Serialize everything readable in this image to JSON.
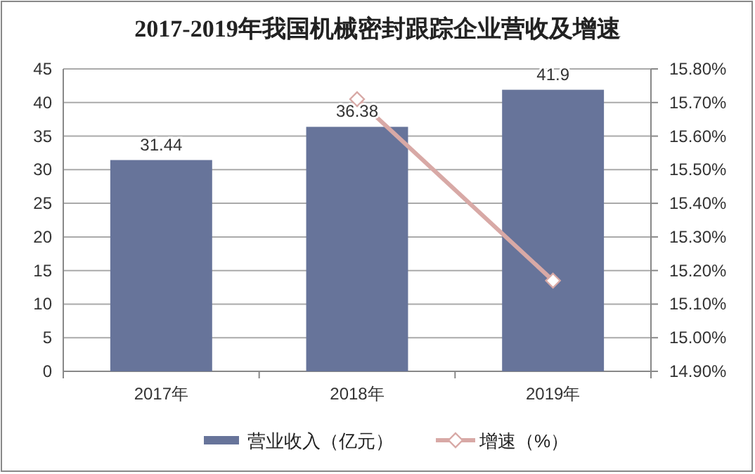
{
  "chart_data": {
    "type": "bar",
    "title": "2017-2019年我国机械密封跟踪企业营收及增速",
    "categories": [
      "2017年",
      "2018年",
      "2019年"
    ],
    "series": [
      {
        "name": "营业收入（亿元）",
        "color": "#67749a",
        "values": [
          31.44,
          36.38,
          41.9
        ],
        "value_labels": [
          "31.44",
          "36.38",
          "41.9"
        ]
      },
      {
        "name": "增速（%）",
        "type": "line",
        "axis": "y2",
        "color": "#d8a9a6",
        "marker": "diamond",
        "values": [
          null,
          15.71,
          15.17
        ]
      }
    ],
    "ylim": [
      0,
      45
    ],
    "yticks": [
      0,
      5,
      10,
      15,
      20,
      25,
      30,
      35,
      40,
      45
    ],
    "y2lim": [
      14.9,
      15.8
    ],
    "y2ticks": [
      {
        "value": 14.9,
        "label": "14.90%"
      },
      {
        "value": 15.0,
        "label": "15.00%"
      },
      {
        "value": 15.1,
        "label": "15.10%"
      },
      {
        "value": 15.2,
        "label": "15.20%"
      },
      {
        "value": 15.3,
        "label": "15.30%"
      },
      {
        "value": 15.4,
        "label": "15.40%"
      },
      {
        "value": 15.5,
        "label": "15.50%"
      },
      {
        "value": 15.6,
        "label": "15.60%"
      },
      {
        "value": 15.7,
        "label": "15.70%"
      },
      {
        "value": 15.8,
        "label": "15.80%"
      }
    ],
    "grid": "y",
    "legend": "bottom"
  }
}
